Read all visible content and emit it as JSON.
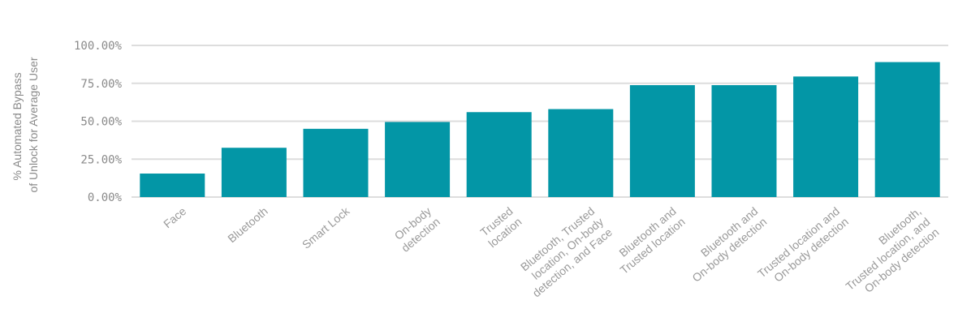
{
  "chart_data": {
    "type": "bar",
    "title": "",
    "xlabel": "",
    "ylabel": [
      "% Automated Bypass",
      "of Unlock for Average User"
    ],
    "ylim": [
      0,
      100
    ],
    "yticks": [
      "0.00%",
      "25.00%",
      "50.00%",
      "75.00%",
      "100.00%"
    ],
    "ytick_values": [
      0,
      25,
      50,
      75,
      100
    ],
    "grid": true,
    "bar_color": "#0396a6",
    "categories": [
      [
        "Face"
      ],
      [
        "Bluetooth"
      ],
      [
        "Smart Lock"
      ],
      [
        "On-body",
        "detection"
      ],
      [
        "Trusted",
        "location"
      ],
      [
        "Bluetooth, Trusted",
        "location, On-body",
        "detection, and Face"
      ],
      [
        "Bluetooth and",
        "Trusted location"
      ],
      [
        "Bluetooth and",
        "On-body detection"
      ],
      [
        "Trusted location and",
        "On-body detection"
      ],
      [
        "Bluetooth,",
        "Trusted location, and",
        "On-body detection"
      ]
    ],
    "values": [
      15.5,
      32.5,
      45.0,
      49.5,
      56.0,
      58.0,
      73.8,
      73.8,
      79.5,
      89.0
    ]
  }
}
